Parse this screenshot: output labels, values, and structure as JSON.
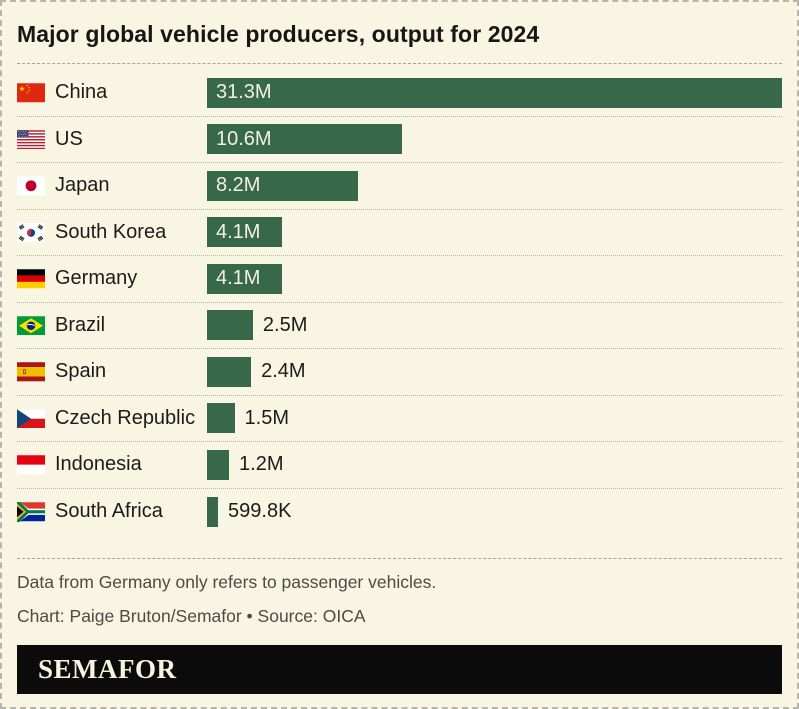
{
  "header": {
    "title": "Major global vehicle producers, output for 2024"
  },
  "chart_data": {
    "type": "bar",
    "orientation": "horizontal",
    "title": "Major global vehicle producers, output for 2024",
    "xlim": [
      0,
      31.3
    ],
    "grid": false,
    "legend": false,
    "bar_color": "#38684a",
    "categories": [
      "China",
      "US",
      "Japan",
      "South Korea",
      "Germany",
      "Brazil",
      "Spain",
      "Czech Republic",
      "Indonesia",
      "South Africa"
    ],
    "values_millions": [
      31.3,
      10.6,
      8.2,
      4.1,
      4.1,
      2.5,
      2.4,
      1.5,
      1.2,
      0.5998
    ],
    "value_labels": [
      "31.3M",
      "10.6M",
      "8.2M",
      "4.1M",
      "4.1M",
      "2.5M",
      "2.4M",
      "1.5M",
      "1.2M",
      "599.8K"
    ],
    "flags": [
      "china",
      "us",
      "japan",
      "south-korea",
      "germany",
      "brazil",
      "spain",
      "czech-republic",
      "indonesia",
      "south-africa"
    ]
  },
  "footer": {
    "footnote": "Data from Germany only refers to passenger vehicles.",
    "credit": "Chart: Paige Bruton/Semafor • Source: OICA",
    "logo_text": "SEMAFOR"
  },
  "colors": {
    "background": "#f8f5e2",
    "bar": "#38684a",
    "inside_label": "#f3f0e0",
    "text": "#1b1b1b",
    "muted_text": "#4c4b44",
    "logo_bar": "#0b0b0b",
    "logo_text": "#f7f3de"
  }
}
